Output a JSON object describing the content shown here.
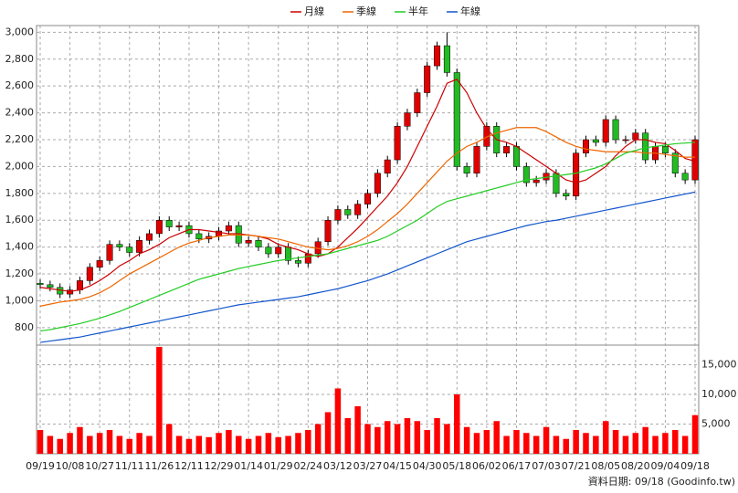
{
  "chart_data": {
    "type": "candlestick",
    "categories": [
      "09/19",
      null,
      null,
      "10/08",
      null,
      null,
      "10/27",
      null,
      null,
      "11/11",
      null,
      null,
      "11/26",
      null,
      null,
      "12/11",
      null,
      null,
      "12/29",
      null,
      null,
      "01/14",
      null,
      null,
      "01/29",
      null,
      null,
      "02/24",
      null,
      null,
      "03/12",
      null,
      null,
      "03/27",
      null,
      null,
      "04/15",
      null,
      null,
      "04/30",
      null,
      null,
      "05/18",
      null,
      null,
      "06/02",
      null,
      null,
      "06/17",
      null,
      null,
      "07/03",
      null,
      null,
      "07/21",
      null,
      null,
      "08/05",
      null,
      null,
      "08/20",
      null,
      null,
      "09/04",
      null,
      null,
      "09/18"
    ],
    "open": [
      1130,
      1120,
      1100,
      1050,
      1080,
      1150,
      1250,
      1300,
      1420,
      1400,
      1360,
      1450,
      1500,
      1600,
      1550,
      1560,
      1500,
      1460,
      1480,
      1520,
      1560,
      1430,
      1450,
      1400,
      1350,
      1400,
      1300,
      1280,
      1350,
      1440,
      1600,
      1680,
      1640,
      1720,
      1800,
      1950,
      2050,
      2300,
      2400,
      2550,
      2750,
      2900,
      2700,
      2000,
      1950,
      2150,
      2300,
      2100,
      2150,
      2000,
      1880,
      1900,
      1950,
      1800,
      1780,
      2100,
      2200,
      2180,
      2350,
      2200,
      2200,
      2250,
      2050,
      2150,
      2100,
      1950,
      1900
    ],
    "high": [
      1160,
      1150,
      1130,
      1110,
      1180,
      1280,
      1330,
      1450,
      1450,
      1430,
      1480,
      1530,
      1630,
      1630,
      1590,
      1590,
      1530,
      1510,
      1550,
      1590,
      1590,
      1480,
      1480,
      1430,
      1430,
      1430,
      1330,
      1380,
      1470,
      1630,
      1710,
      1710,
      1750,
      1830,
      1980,
      2080,
      2330,
      2430,
      2580,
      2780,
      2930,
      3000,
      2730,
      2030,
      2180,
      2330,
      2330,
      2180,
      2180,
      2030,
      1930,
      1980,
      1980,
      1830,
      2130,
      2230,
      2230,
      2380,
      2380,
      2230,
      2280,
      2280,
      2180,
      2180,
      2130,
      1980,
      2230
    ],
    "low": [
      1090,
      1070,
      1020,
      1020,
      1050,
      1120,
      1220,
      1270,
      1370,
      1330,
      1330,
      1420,
      1470,
      1520,
      1520,
      1470,
      1430,
      1430,
      1450,
      1490,
      1400,
      1400,
      1370,
      1320,
      1320,
      1270,
      1250,
      1250,
      1320,
      1410,
      1570,
      1610,
      1610,
      1690,
      1770,
      1920,
      2020,
      2270,
      2370,
      2520,
      2720,
      2670,
      1970,
      1920,
      1920,
      2120,
      2070,
      2070,
      1970,
      1850,
      1850,
      1870,
      1770,
      1750,
      1750,
      2070,
      2150,
      2150,
      2170,
      2170,
      2170,
      2020,
      2020,
      2070,
      1920,
      1870,
      1870
    ],
    "close": [
      1120,
      1100,
      1050,
      1080,
      1150,
      1250,
      1300,
      1420,
      1400,
      1360,
      1450,
      1500,
      1600,
      1550,
      1560,
      1500,
      1460,
      1480,
      1520,
      1560,
      1430,
      1450,
      1400,
      1350,
      1400,
      1300,
      1280,
      1350,
      1440,
      1600,
      1680,
      1640,
      1720,
      1800,
      1950,
      2050,
      2300,
      2400,
      2550,
      2750,
      2900,
      2700,
      2000,
      1950,
      2150,
      2300,
      2100,
      2150,
      2000,
      1880,
      1900,
      1950,
      1800,
      1780,
      2100,
      2200,
      2180,
      2350,
      2200,
      2200,
      2250,
      2050,
      2150,
      2100,
      1950,
      1900,
      2200
    ],
    "volume": [
      4000,
      3000,
      2500,
      3500,
      4500,
      3000,
      3500,
      4000,
      3000,
      2500,
      3500,
      3000,
      18000,
      5000,
      3000,
      2500,
      3000,
      2800,
      3500,
      4000,
      3000,
      2500,
      3000,
      3500,
      2800,
      3000,
      3500,
      4000,
      5000,
      7000,
      11000,
      6000,
      8000,
      5000,
      4500,
      5500,
      5000,
      6000,
      5500,
      4000,
      6000,
      5000,
      10000,
      4500,
      3500,
      4000,
      5500,
      3000,
      4000,
      3500,
      3000,
      4500,
      3000,
      2500,
      4000,
      3500,
      3000,
      5500,
      4000,
      3000,
      3500,
      4500,
      3000,
      3500,
      4000,
      3000,
      6500
    ],
    "up_color": "#e00000",
    "down_color": "#22bb22",
    "volume_color": "#ff0000",
    "series": [
      {
        "name": "月線",
        "color": "#cc0000",
        "values": [
          1100,
          1090,
          1080,
          1070,
          1080,
          1110,
          1150,
          1200,
          1260,
          1300,
          1350,
          1380,
          1420,
          1470,
          1500,
          1530,
          1530,
          1520,
          1510,
          1500,
          1500,
          1490,
          1480,
          1460,
          1420,
          1400,
          1380,
          1350,
          1330,
          1350,
          1400,
          1470,
          1540,
          1620,
          1700,
          1780,
          1880,
          2000,
          2150,
          2300,
          2450,
          2620,
          2650,
          2550,
          2400,
          2280,
          2200,
          2180,
          2150,
          2100,
          2050,
          2000,
          1950,
          1900,
          1880,
          1900,
          1950,
          2000,
          2080,
          2150,
          2200,
          2200,
          2180,
          2170,
          2120,
          2060,
          2040
        ]
      },
      {
        "name": "季線",
        "color": "#ee6600",
        "values": [
          960,
          975,
          990,
          1000,
          1010,
          1030,
          1060,
          1100,
          1150,
          1200,
          1240,
          1280,
          1320,
          1360,
          1400,
          1430,
          1450,
          1470,
          1480,
          1490,
          1490,
          1490,
          1480,
          1470,
          1460,
          1440,
          1420,
          1400,
          1390,
          1380,
          1390,
          1410,
          1440,
          1480,
          1530,
          1590,
          1650,
          1720,
          1800,
          1880,
          1960,
          2040,
          2100,
          2150,
          2180,
          2220,
          2250,
          2270,
          2290,
          2290,
          2290,
          2260,
          2220,
          2180,
          2150,
          2130,
          2120,
          2110,
          2110,
          2110,
          2110,
          2100,
          2100,
          2090,
          2080,
          2070,
          2070
        ]
      },
      {
        "name": "半年",
        "color": "#22cc22",
        "values": [
          775,
          785,
          800,
          815,
          830,
          850,
          870,
          895,
          920,
          950,
          980,
          1010,
          1040,
          1070,
          1100,
          1130,
          1160,
          1180,
          1200,
          1220,
          1240,
          1255,
          1270,
          1285,
          1300,
          1310,
          1320,
          1330,
          1340,
          1350,
          1370,
          1390,
          1410,
          1430,
          1450,
          1480,
          1520,
          1560,
          1600,
          1650,
          1700,
          1740,
          1760,
          1780,
          1800,
          1820,
          1840,
          1860,
          1880,
          1900,
          1910,
          1920,
          1930,
          1940,
          1950,
          1970,
          1990,
          2020,
          2060,
          2100,
          2120,
          2140,
          2150,
          2160,
          2170,
          2175,
          2180
        ]
      },
      {
        "name": "年線",
        "color": "#1155cc",
        "values": [
          690,
          700,
          710,
          720,
          730,
          745,
          760,
          775,
          790,
          805,
          820,
          835,
          850,
          865,
          880,
          895,
          910,
          925,
          940,
          955,
          970,
          980,
          990,
          1000,
          1010,
          1020,
          1030,
          1045,
          1060,
          1075,
          1090,
          1110,
          1130,
          1150,
          1175,
          1200,
          1230,
          1260,
          1290,
          1320,
          1350,
          1380,
          1410,
          1440,
          1460,
          1480,
          1500,
          1520,
          1540,
          1560,
          1575,
          1590,
          1600,
          1615,
          1630,
          1645,
          1660,
          1675,
          1690,
          1705,
          1720,
          1735,
          1750,
          1765,
          1780,
          1795,
          1810
        ]
      }
    ],
    "ylim": [
      670,
      3050
    ],
    "yticks": [
      800,
      {
        "value": 1000,
        "label": "1,000"
      },
      {
        "value": 1200,
        "label": "1,200"
      },
      {
        "value": 1400,
        "label": "1,400"
      },
      {
        "value": 1600,
        "label": "1,600"
      },
      {
        "value": 1800,
        "label": "1,800"
      },
      {
        "value": 2000,
        "label": "2,000"
      },
      {
        "value": 2200,
        "label": "2,200"
      },
      {
        "value": 2400,
        "label": "2,400"
      },
      {
        "value": 2600,
        "label": "2,600"
      },
      {
        "value": 2800,
        "label": "2,800"
      },
      {
        "value": 3000,
        "label": "3,000"
      }
    ],
    "y2lim": [
      0,
      18300
    ],
    "y2ticks": [
      {
        "value": 5000,
        "label": "5,000"
      },
      {
        "value": 10000,
        "label": "10,000"
      },
      {
        "value": 15000,
        "label": "15,000"
      }
    ],
    "grid": true,
    "legend": "top",
    "source": "資料日期: 09/18 (Goodinfo.tw)"
  }
}
